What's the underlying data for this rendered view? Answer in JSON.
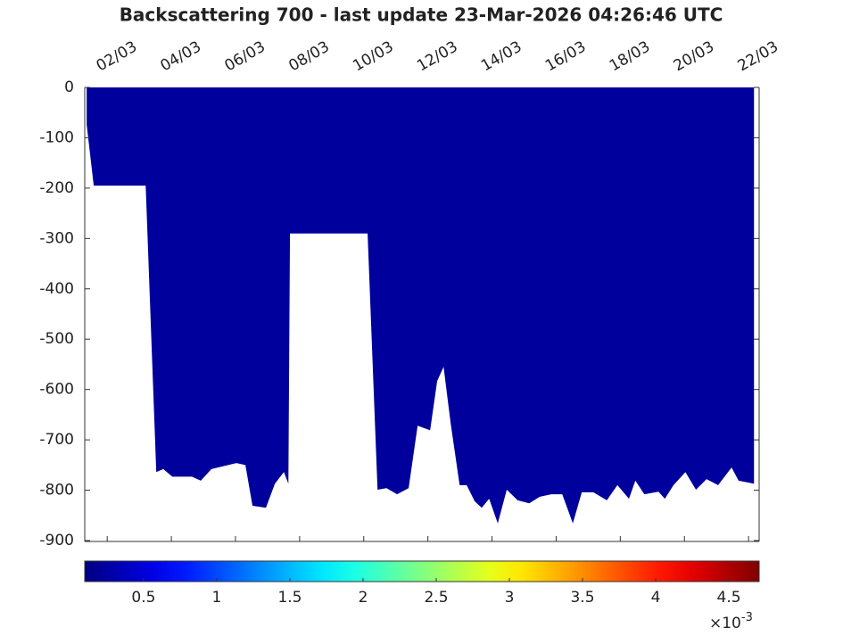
{
  "chart_data": {
    "type": "area",
    "title": "Backscattering 700 - last update 23-Mar-2026 04:26:46 UTC",
    "x": [
      1.36,
      1.58,
      3.2,
      3.53,
      3.75,
      4.03,
      4.64,
      4.92,
      5.25,
      6.03,
      6.31,
      6.53,
      6.95,
      7.23,
      7.51,
      7.65,
      7.7,
      10.12,
      10.43,
      10.71,
      11.04,
      11.4,
      11.68,
      12.07,
      12.29,
      12.49,
      12.71,
      12.99,
      13.21,
      13.46,
      13.68,
      13.91,
      14.18,
      14.46,
      14.8,
      15.16,
      15.49,
      15.85,
      16.19,
      16.52,
      16.8,
      17.16,
      17.58,
      17.91,
      18.27,
      18.47,
      18.75,
      19.19,
      19.39,
      19.66,
      20.03,
      20.36,
      20.69,
      21.05,
      21.47,
      21.69,
      22.17
    ],
    "values": [
      -74,
      -195,
      -195,
      -764,
      -758,
      -773,
      -773,
      -781,
      -758,
      -746,
      -750,
      -831,
      -835,
      -787,
      -764,
      -787,
      -290,
      -290,
      -799,
      -796,
      -808,
      -796,
      -672,
      -681,
      -583,
      -555,
      -667,
      -790,
      -790,
      -822,
      -835,
      -817,
      -866,
      -799,
      -820,
      -826,
      -813,
      -808,
      -808,
      -866,
      -804,
      -804,
      -820,
      -790,
      -817,
      -781,
      -808,
      -803,
      -817,
      -790,
      -764,
      -799,
      -778,
      -790,
      -755,
      -781,
      -787
    ],
    "color": "#00009c",
    "xlim": [
      1.3,
      22.33
    ],
    "xticks": [
      {
        "value": 2,
        "label": "02/03"
      },
      {
        "value": 4,
        "label": "04/03"
      },
      {
        "value": 6,
        "label": "06/03"
      },
      {
        "value": 8,
        "label": "08/03"
      },
      {
        "value": 10,
        "label": "10/03"
      },
      {
        "value": 12,
        "label": "12/03"
      },
      {
        "value": 14,
        "label": "14/03"
      },
      {
        "value": 16,
        "label": "16/03"
      },
      {
        "value": 18,
        "label": "18/03"
      },
      {
        "value": 20,
        "label": "20/03"
      },
      {
        "value": 22,
        "label": "22/03"
      }
    ],
    "ylim": [
      -900,
      0
    ],
    "yticks": [
      0,
      -100,
      -200,
      -300,
      -400,
      -500,
      -600,
      -700,
      -800,
      -900
    ],
    "colorbar": {
      "clim": [
        0.098,
        4.707
      ],
      "ticks": [
        0.5,
        1,
        1.5,
        2,
        2.5,
        3,
        3.5,
        4,
        4.5
      ],
      "multiplier": "×10",
      "exponent": "-3",
      "colormap": "jet"
    }
  }
}
